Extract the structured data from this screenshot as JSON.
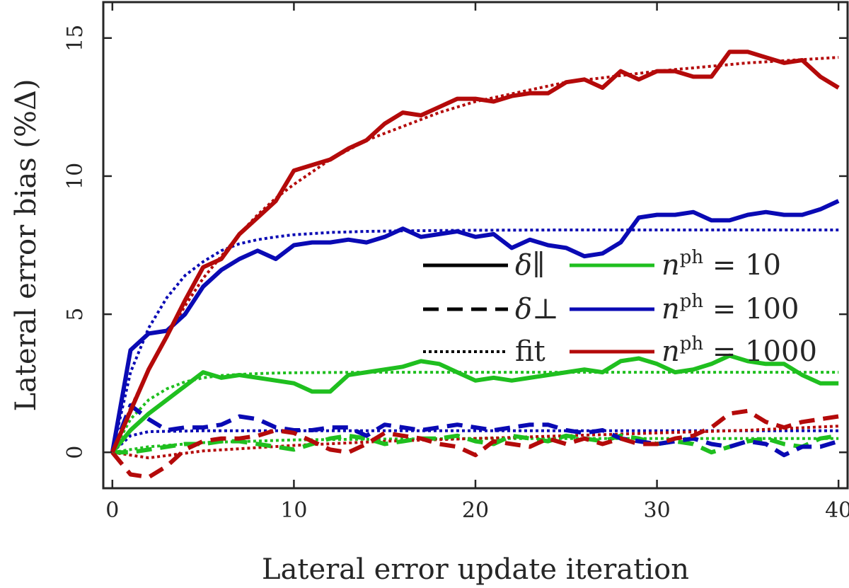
{
  "chart_data": {
    "type": "line",
    "title": "",
    "xlabel": "Lateral error update iteration",
    "ylabel": "Lateral error bias (%Δ)",
    "xlim": [
      -0.5,
      40.5
    ],
    "ylim": [
      -1.3,
      16.3
    ],
    "xticks": [
      0,
      10,
      20,
      30,
      40
    ],
    "yticks": [
      0,
      5,
      10,
      15
    ],
    "grid": false,
    "legend_placement": "center-right",
    "legend": {
      "styles": [
        {
          "label": "δ∥",
          "dash": "solid"
        },
        {
          "label": "δ⊥",
          "dash": "dashed"
        },
        {
          "label": "fit",
          "dash": "dotted"
        }
      ],
      "colors": [
        {
          "label": "n^ph = 10",
          "color": "#1fbf1f"
        },
        {
          "label": "n^ph = 100",
          "color": "#0a0ab4"
        },
        {
          "label": "n^ph = 1000",
          "color": "#b40a0a"
        }
      ]
    },
    "series": [
      {
        "kind": "parallel",
        "dash": "solid",
        "color": "#1fbf1f",
        "x": [
          0,
          1,
          2,
          3,
          4,
          5,
          6,
          7,
          8,
          9,
          10,
          11,
          12,
          13,
          14,
          15,
          16,
          17,
          18,
          19,
          20,
          21,
          22,
          23,
          24,
          25,
          26,
          27,
          28,
          29,
          30,
          31,
          32,
          33,
          34,
          35,
          36,
          37,
          38,
          39,
          40
        ],
        "values": [
          0,
          0.8,
          1.4,
          1.9,
          2.4,
          2.9,
          2.7,
          2.8,
          2.7,
          2.6,
          2.5,
          2.2,
          2.2,
          2.8,
          2.9,
          3.0,
          3.1,
          3.3,
          3.2,
          2.9,
          2.6,
          2.7,
          2.6,
          2.7,
          2.8,
          2.9,
          3.0,
          2.9,
          3.3,
          3.4,
          3.2,
          2.9,
          3.0,
          3.2,
          3.5,
          3.3,
          3.2,
          3.2,
          2.8,
          2.5,
          2.5
        ]
      },
      {
        "kind": "parallel",
        "dash": "solid",
        "color": "#0a0ab4",
        "x": [
          0,
          1,
          2,
          3,
          4,
          5,
          6,
          7,
          8,
          9,
          10,
          11,
          12,
          13,
          14,
          15,
          16,
          17,
          18,
          19,
          20,
          21,
          22,
          23,
          24,
          25,
          26,
          27,
          28,
          29,
          30,
          31,
          32,
          33,
          34,
          35,
          36,
          37,
          38,
          39,
          40
        ],
        "values": [
          0,
          3.7,
          4.3,
          4.4,
          5.0,
          6.0,
          6.6,
          7.0,
          7.3,
          7.0,
          7.5,
          7.6,
          7.6,
          7.7,
          7.6,
          7.8,
          8.1,
          7.8,
          7.9,
          8.0,
          7.8,
          7.9,
          7.4,
          7.7,
          7.5,
          7.4,
          7.1,
          7.2,
          7.6,
          8.5,
          8.6,
          8.6,
          8.7,
          8.4,
          8.4,
          8.6,
          8.7,
          8.6,
          8.6,
          8.8,
          9.1
        ]
      },
      {
        "kind": "parallel",
        "dash": "solid",
        "color": "#b40a0a",
        "x": [
          0,
          1,
          2,
          3,
          4,
          5,
          6,
          7,
          8,
          9,
          10,
          11,
          12,
          13,
          14,
          15,
          16,
          17,
          18,
          19,
          20,
          21,
          22,
          23,
          24,
          25,
          26,
          27,
          28,
          29,
          30,
          31,
          32,
          33,
          34,
          35,
          36,
          37,
          38,
          39,
          40
        ],
        "values": [
          0,
          1.5,
          3.0,
          4.2,
          5.5,
          6.7,
          7.0,
          7.9,
          8.5,
          9.1,
          10.2,
          10.4,
          10.6,
          11.0,
          11.3,
          11.9,
          12.3,
          12.2,
          12.5,
          12.8,
          12.8,
          12.7,
          12.9,
          13.0,
          13.0,
          13.4,
          13.5,
          13.2,
          13.8,
          13.5,
          13.8,
          13.8,
          13.6,
          13.6,
          14.5,
          14.5,
          14.3,
          14.1,
          14.2,
          13.6,
          13.2
        ]
      },
      {
        "kind": "perpendicular",
        "dash": "dashed",
        "color": "#1fbf1f",
        "x": [
          0,
          1,
          2,
          3,
          4,
          5,
          6,
          7,
          8,
          9,
          10,
          11,
          12,
          13,
          14,
          15,
          16,
          17,
          18,
          19,
          20,
          21,
          22,
          23,
          24,
          25,
          26,
          27,
          28,
          29,
          30,
          31,
          32,
          33,
          34,
          35,
          36,
          37,
          38,
          39,
          40
        ],
        "values": [
          0,
          0.0,
          0.1,
          0.2,
          0.3,
          0.3,
          0.4,
          0.4,
          0.3,
          0.2,
          0.1,
          0.3,
          0.5,
          0.6,
          0.5,
          0.3,
          0.4,
          0.5,
          0.5,
          0.6,
          0.4,
          0.3,
          0.6,
          0.5,
          0.4,
          0.6,
          0.5,
          0.4,
          0.6,
          0.5,
          0.3,
          0.4,
          0.3,
          0.0,
          0.2,
          0.4,
          0.5,
          0.3,
          0.2,
          0.5,
          0.6
        ]
      },
      {
        "kind": "perpendicular",
        "dash": "dashed",
        "color": "#0a0ab4",
        "x": [
          0,
          1,
          2,
          3,
          4,
          5,
          6,
          7,
          8,
          9,
          10,
          11,
          12,
          13,
          14,
          15,
          16,
          17,
          18,
          19,
          20,
          21,
          22,
          23,
          24,
          25,
          26,
          27,
          28,
          29,
          30,
          31,
          32,
          33,
          34,
          35,
          36,
          37,
          38,
          39,
          40
        ],
        "values": [
          0,
          1.7,
          1.2,
          0.8,
          0.9,
          0.9,
          1.0,
          1.3,
          1.2,
          0.9,
          0.8,
          0.8,
          0.9,
          0.9,
          0.6,
          1.0,
          0.9,
          0.8,
          0.9,
          1.0,
          0.9,
          0.8,
          0.9,
          1.0,
          1.0,
          0.8,
          0.7,
          0.8,
          0.5,
          0.4,
          0.3,
          0.4,
          0.5,
          0.3,
          0.2,
          0.4,
          0.3,
          -0.1,
          0.2,
          0.2,
          0.4
        ]
      },
      {
        "kind": "perpendicular",
        "dash": "dashed",
        "color": "#b40a0a",
        "x": [
          0,
          1,
          2,
          3,
          4,
          5,
          6,
          7,
          8,
          9,
          10,
          11,
          12,
          13,
          14,
          15,
          16,
          17,
          18,
          19,
          20,
          21,
          22,
          23,
          24,
          25,
          26,
          27,
          28,
          29,
          30,
          31,
          32,
          33,
          34,
          35,
          36,
          37,
          38,
          39,
          40
        ],
        "values": [
          0,
          -0.8,
          -0.9,
          -0.5,
          0.1,
          0.4,
          0.5,
          0.5,
          0.6,
          0.8,
          0.7,
          0.4,
          0.1,
          0.0,
          0.3,
          0.7,
          0.6,
          0.5,
          0.3,
          0.2,
          -0.1,
          0.4,
          0.3,
          0.2,
          0.5,
          0.3,
          0.5,
          0.3,
          0.5,
          0.3,
          0.3,
          0.5,
          0.6,
          0.9,
          1.4,
          1.5,
          1.1,
          0.9,
          1.1,
          1.2,
          1.3
        ]
      },
      {
        "kind": "fit",
        "dash": "dotted",
        "color": "#1fbf1f",
        "x": [
          0,
          1,
          2,
          3,
          4,
          5,
          6,
          7,
          8,
          9,
          10,
          12,
          14,
          16,
          18,
          20,
          25,
          30,
          35,
          40
        ],
        "values": [
          0,
          1.2,
          1.9,
          2.3,
          2.55,
          2.7,
          2.78,
          2.82,
          2.85,
          2.87,
          2.88,
          2.89,
          2.9,
          2.9,
          2.9,
          2.9,
          2.9,
          2.9,
          2.9,
          2.9
        ]
      },
      {
        "kind": "fit",
        "dash": "dotted",
        "color": "#0a0ab4",
        "x": [
          0,
          1,
          2,
          3,
          4,
          5,
          6,
          7,
          8,
          9,
          10,
          12,
          14,
          16,
          18,
          20,
          25,
          30,
          35,
          40
        ],
        "values": [
          0,
          2.9,
          4.5,
          5.6,
          6.4,
          6.9,
          7.3,
          7.55,
          7.7,
          7.8,
          7.88,
          7.96,
          8.0,
          8.02,
          8.03,
          8.04,
          8.05,
          8.05,
          8.05,
          8.05
        ]
      },
      {
        "kind": "fit",
        "dash": "dotted",
        "color": "#b40a0a",
        "x": [
          0,
          1,
          2,
          3,
          4,
          5,
          6,
          7,
          8,
          9,
          10,
          12,
          14,
          16,
          18,
          20,
          25,
          30,
          35,
          40
        ],
        "values": [
          0,
          1.6,
          3.0,
          4.2,
          5.3,
          6.3,
          7.1,
          7.9,
          8.6,
          9.2,
          9.7,
          10.6,
          11.3,
          11.8,
          12.3,
          12.7,
          13.4,
          13.8,
          14.1,
          14.3
        ]
      },
      {
        "kind": "fit",
        "dash": "dotted",
        "color": "#1fbf1f",
        "x": [
          0,
          2,
          5,
          10,
          15,
          20,
          25,
          30,
          35,
          40
        ],
        "values": [
          0,
          0.2,
          0.35,
          0.45,
          0.48,
          0.5,
          0.5,
          0.5,
          0.5,
          0.5
        ]
      },
      {
        "kind": "fit",
        "dash": "dotted",
        "color": "#0a0ab4",
        "x": [
          0,
          1,
          2,
          5,
          10,
          20,
          30,
          40
        ],
        "values": [
          0,
          0.6,
          0.75,
          0.78,
          0.78,
          0.78,
          0.78,
          0.78
        ]
      },
      {
        "kind": "fit",
        "dash": "dotted",
        "color": "#b40a0a",
        "x": [
          0,
          2,
          5,
          10,
          15,
          20,
          25,
          30,
          35,
          40
        ],
        "values": [
          0,
          -0.2,
          0.05,
          0.25,
          0.4,
          0.5,
          0.6,
          0.7,
          0.8,
          0.95
        ]
      }
    ]
  }
}
